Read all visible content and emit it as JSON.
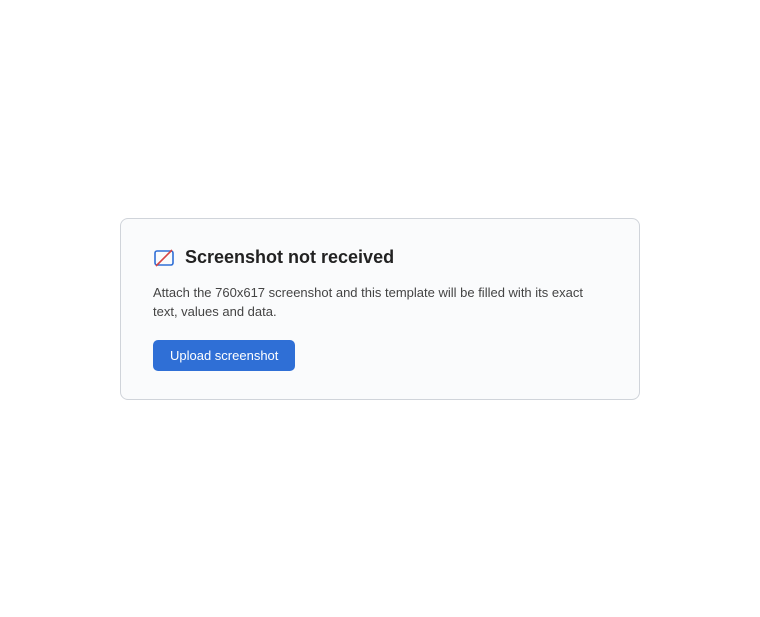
{
  "notice": {
    "title": "Screenshot not received",
    "body": "Attach the 760x617 screenshot and this template will be filled with its exact text, values and data.",
    "button_label": "Upload screenshot",
    "icon": "image-missing-icon",
    "accent_color": "#2f6fd6"
  }
}
